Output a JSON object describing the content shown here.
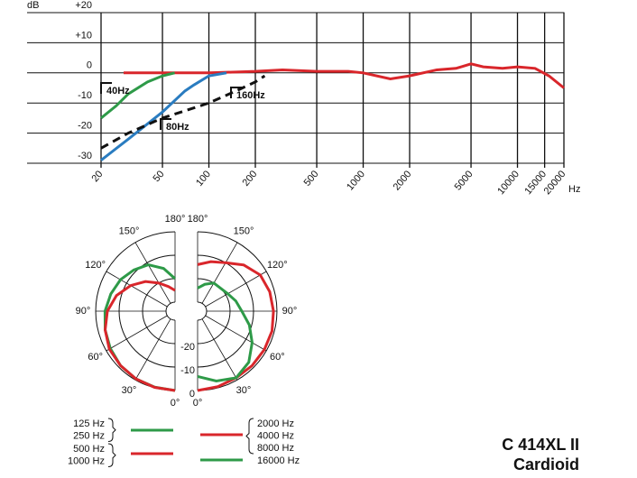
{
  "chart_data": [
    {
      "type": "line",
      "log_x": true,
      "y_label": "dB",
      "x_label": "Hz",
      "xlim": [
        20,
        20000
      ],
      "xticks": [
        20,
        50,
        100,
        200,
        500,
        1000,
        2000,
        5000,
        10000,
        15000,
        20000
      ],
      "ylim": [
        -30,
        20
      ],
      "yticks": [
        -30,
        -20,
        -10,
        0,
        {
          "value": 10,
          "label": "+10"
        },
        {
          "value": 20,
          "label": "+20"
        }
      ],
      "grid": true,
      "series": [
        {
          "name": "Cardioid",
          "color": "#d9262b",
          "dash": false,
          "x": [
            28,
            50,
            100,
            200,
            300,
            500,
            800,
            1000,
            1500,
            2000,
            3000,
            4000,
            5000,
            6000,
            8000,
            10000,
            13000,
            16000,
            20000
          ],
          "values": [
            0,
            0,
            0,
            0.5,
            1,
            0.5,
            0.5,
            0,
            -2,
            -1,
            1,
            1.5,
            3,
            2,
            1.5,
            2,
            1.5,
            -1,
            -5
          ]
        },
        {
          "name": "40Hz",
          "color": "#2e9a48",
          "dash": false,
          "x": [
            20,
            25,
            30,
            40,
            50,
            60
          ],
          "values": [
            -15,
            -11,
            -7,
            -3,
            -1,
            0
          ]
        },
        {
          "name": "80Hz",
          "color": "#2a7cc0",
          "dash": false,
          "x": [
            20,
            30,
            50,
            70,
            80,
            100,
            130
          ],
          "values": [
            -29,
            -22,
            -13,
            -6,
            -4,
            -1,
            0
          ]
        },
        {
          "name": "160Hz",
          "color": "#111111",
          "dash": true,
          "x": [
            20,
            30,
            50,
            100,
            150,
            200,
            230
          ],
          "values": [
            -25,
            -20,
            -15,
            -10,
            -6,
            -3,
            -1
          ]
        }
      ]
    },
    {
      "type": "polar",
      "angles": [
        0,
        15,
        30,
        45,
        60,
        75,
        90,
        105,
        120,
        135,
        150,
        165,
        180
      ],
      "angle_ticks": [
        {
          "value": 0,
          "label": "0°"
        },
        {
          "value": 30,
          "label": "30°"
        },
        {
          "value": 60,
          "label": "60°"
        },
        {
          "value": 90,
          "label": "90°"
        },
        {
          "value": 120,
          "label": "120°"
        },
        {
          "value": 150,
          "label": "150°"
        },
        {
          "value": 180,
          "label": "180°"
        }
      ],
      "rlim": [
        -30,
        0
      ],
      "rticks": [
        -20,
        -10,
        0
      ],
      "series": [
        {
          "labels": [
            "125 Hz",
            "250 Hz"
          ],
          "side": "left",
          "color": "#2e9a48",
          "values": [
            0,
            -0.3,
            -0.5,
            -1,
            -2,
            -3,
            -4,
            -5.5,
            -7,
            -9,
            -11,
            -15,
            -20
          ]
        },
        {
          "labels": [
            "500 Hz",
            "1000 Hz"
          ],
          "side": "left",
          "color": "#d9262b",
          "values": [
            0,
            -0.2,
            -0.5,
            -1,
            -1.5,
            -3,
            -5,
            -8,
            -12,
            -16,
            -20,
            -23,
            -25
          ]
        },
        {
          "labels": [
            "2000 Hz",
            "4000 Hz",
            "8000 Hz"
          ],
          "side": "right",
          "color": "#d9262b",
          "values": [
            0,
            -0.5,
            -1,
            -1,
            -1,
            -1,
            -1.5,
            -2,
            -3,
            -6,
            -10,
            -12,
            -14
          ]
        },
        {
          "labels": [
            "16000 Hz"
          ],
          "side": "right",
          "color": "#2e9a48",
          "values": [
            -6,
            -3,
            -1,
            -3,
            -7,
            -11,
            -15,
            -17,
            -19,
            -20,
            -20,
            -22,
            -24
          ]
        }
      ]
    }
  ],
  "model": "C 414XL II",
  "pattern": "Cardioid"
}
